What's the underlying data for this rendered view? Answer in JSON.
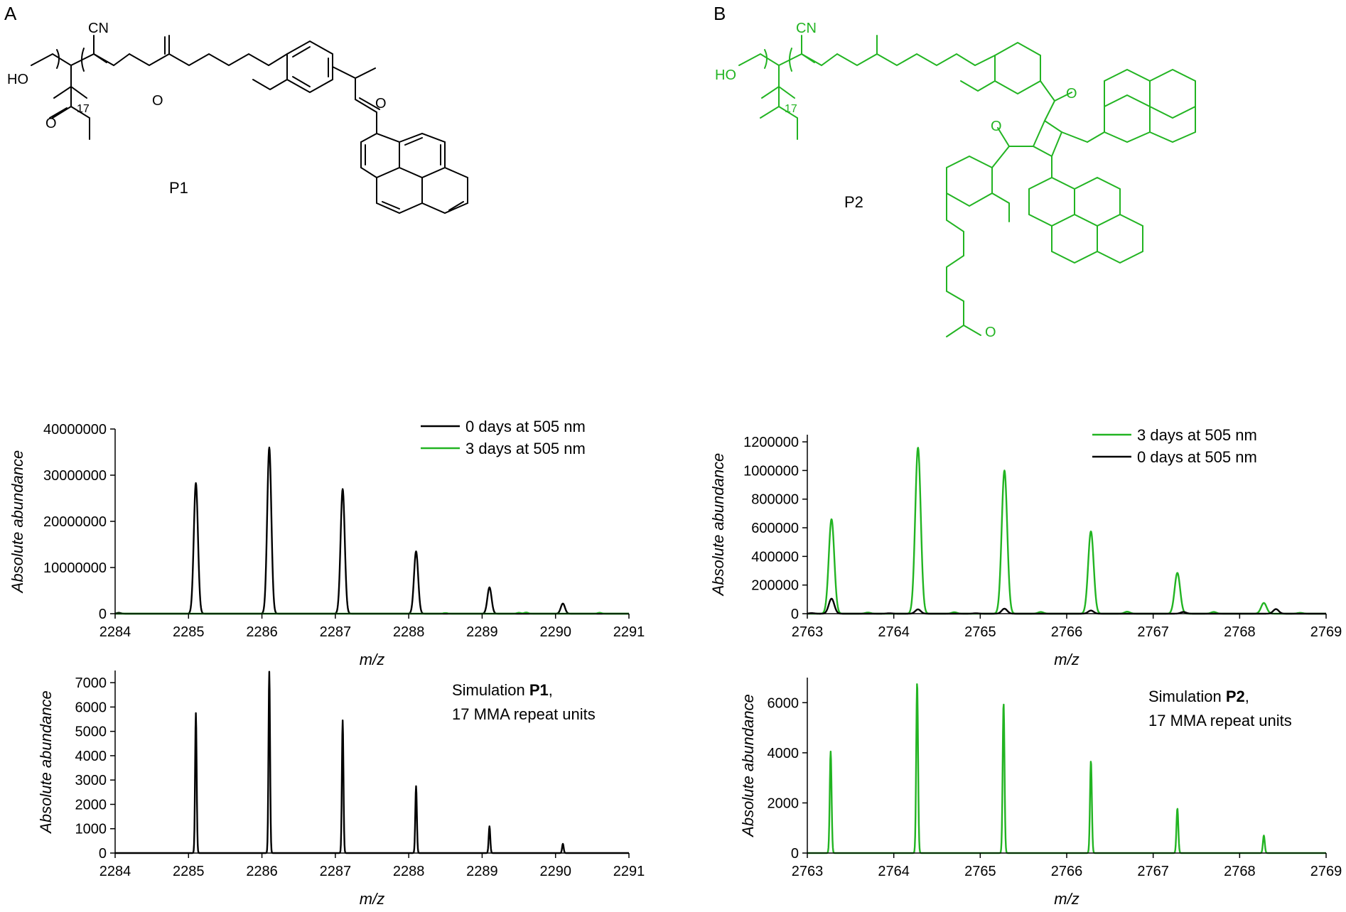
{
  "panels": {
    "A": {
      "label": "A",
      "compound": "P1"
    },
    "B": {
      "label": "B",
      "compound": "P2"
    }
  },
  "structure_labels": {
    "cn": "CN",
    "ho": "HO",
    "o": "O",
    "repeat": "17"
  },
  "colors": {
    "black": "#000000",
    "green": "#22b422"
  },
  "chart_data": [
    {
      "id": "A-top",
      "type": "line",
      "xlabel": "m/z",
      "ylabel": "Absolute abundance",
      "xlim": [
        2284,
        2291
      ],
      "ylim": [
        0,
        40000000
      ],
      "xticks": [
        2284,
        2285,
        2286,
        2287,
        2288,
        2289,
        2290,
        2291
      ],
      "yticks": [
        0,
        10000000,
        20000000,
        30000000,
        40000000
      ],
      "legend_position": "top-right",
      "peak_width": 0.04,
      "series": [
        {
          "name": "0 days at 505 nm",
          "color": "#000000",
          "peaks": [
            [
              2284.05,
              200000
            ],
            [
              2285.1,
              28300000
            ],
            [
              2286.1,
              36000000
            ],
            [
              2287.1,
              27000000
            ],
            [
              2288.1,
              13500000
            ],
            [
              2289.1,
              5700000
            ],
            [
              2290.1,
              2200000
            ]
          ]
        },
        {
          "name": "3 days at 505 nm",
          "color": "#22b422",
          "peaks": [
            [
              2288.5,
              150000
            ],
            [
              2289.5,
              200000
            ],
            [
              2289.6,
              250000
            ],
            [
              2290.6,
              200000
            ]
          ]
        }
      ]
    },
    {
      "id": "A-bottom",
      "type": "line",
      "xlabel": "m/z",
      "ylabel": "Absolute abundance",
      "xlim": [
        2284,
        2291
      ],
      "ylim": [
        0,
        7500
      ],
      "xticks": [
        2284,
        2285,
        2286,
        2287,
        2288,
        2289,
        2290,
        2291
      ],
      "yticks": [
        0,
        1000,
        2000,
        3000,
        4000,
        5000,
        6000,
        7000
      ],
      "peak_width": 0.015,
      "annotation": {
        "text_prefix": "Simulation ",
        "text_bold": "P1",
        "text_suffix": ",",
        "line2": "17 MMA repeat units"
      },
      "series": [
        {
          "color": "#000000",
          "peaks": [
            [
              2285.1,
              5750
            ],
            [
              2286.1,
              7450
            ],
            [
              2287.1,
              5450
            ],
            [
              2288.1,
              2750
            ],
            [
              2289.1,
              1100
            ],
            [
              2290.1,
              380
            ]
          ]
        }
      ]
    },
    {
      "id": "B-top",
      "type": "line",
      "xlabel": "m/z",
      "ylabel": "Absolute abundance",
      "xlim": [
        2763,
        2769
      ],
      "ylim": [
        0,
        1250000
      ],
      "xticks": [
        2763,
        2764,
        2765,
        2766,
        2767,
        2768,
        2769
      ],
      "yticks": [
        0,
        200000,
        400000,
        600000,
        800000,
        1000000,
        1200000
      ],
      "legend_position": "top-right",
      "peak_width": 0.045,
      "series": [
        {
          "name": "3 days at 505 nm",
          "color": "#22b422",
          "peaks": [
            [
              2763.28,
              660000
            ],
            [
              2763.7,
              8000
            ],
            [
              2764.28,
              1160000
            ],
            [
              2764.7,
              10000
            ],
            [
              2765.28,
              1000000
            ],
            [
              2765.7,
              12000
            ],
            [
              2766.28,
              575000
            ],
            [
              2766.7,
              14000
            ],
            [
              2767.28,
              285000
            ],
            [
              2767.7,
              12000
            ],
            [
              2768.28,
              75000
            ],
            [
              2768.7,
              6000
            ]
          ]
        },
        {
          "name": "0 days at 505 nm",
          "color": "#000000",
          "peaks": [
            [
              2763.05,
              4000
            ],
            [
              2763.28,
              105000
            ],
            [
              2763.95,
              3000
            ],
            [
              2764.28,
              30000
            ],
            [
              2764.95,
              3000
            ],
            [
              2765.28,
              35000
            ],
            [
              2766.28,
              22000
            ],
            [
              2767.35,
              12000
            ],
            [
              2768.42,
              32000
            ]
          ]
        }
      ]
    },
    {
      "id": "B-bottom",
      "type": "line",
      "xlabel": "m/z",
      "ylabel": "Absolute abundance",
      "xlim": [
        2763,
        2769
      ],
      "ylim": [
        0,
        7000
      ],
      "xticks": [
        2763,
        2764,
        2765,
        2766,
        2767,
        2768,
        2769
      ],
      "yticks": [
        0,
        2000,
        4000,
        6000
      ],
      "peak_width": 0.015,
      "annotation": {
        "text_prefix": "Simulation ",
        "text_bold": "P2",
        "text_suffix": ",",
        "line2": "17 MMA repeat units"
      },
      "series": [
        {
          "color": "#22b422",
          "peaks": [
            [
              2763.27,
              4050
            ],
            [
              2764.27,
              6800
            ],
            [
              2765.27,
              5980
            ],
            [
              2766.28,
              3680
            ],
            [
              2767.28,
              1780
            ],
            [
              2768.28,
              700
            ]
          ]
        }
      ]
    }
  ]
}
